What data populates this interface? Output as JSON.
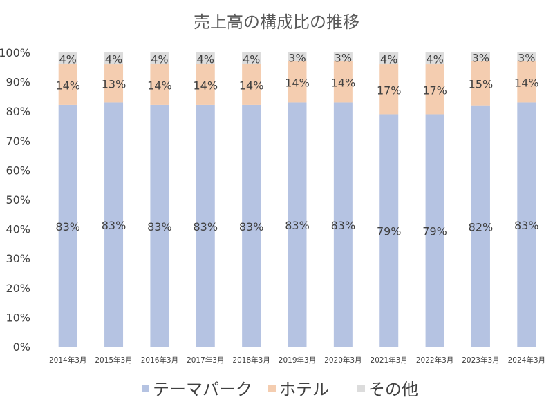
{
  "chart_data": {
    "type": "bar",
    "stacked": "percent",
    "title": "売上高の構成比の推移",
    "categories": [
      "2014年3月",
      "2015年3月",
      "2016年3月",
      "2017年3月",
      "2018年3月",
      "2019年3月",
      "2020年3月",
      "2021年3月",
      "2022年3月",
      "2023年3月",
      "2024年3月"
    ],
    "series": [
      {
        "name": "テーマパーク",
        "color": "#b5c3e2",
        "values": [
          83,
          83,
          83,
          83,
          83,
          83,
          83,
          79,
          79,
          82,
          83
        ]
      },
      {
        "name": "ホテル",
        "color": "#f4cdb0",
        "values": [
          14,
          13,
          14,
          14,
          14,
          14,
          14,
          17,
          17,
          15,
          14
        ]
      },
      {
        "name": "その他",
        "color": "#dcdcdc",
        "values": [
          4,
          4,
          4,
          4,
          4,
          3,
          3,
          4,
          4,
          3,
          3
        ]
      }
    ],
    "yticks": [
      "0%",
      "10%",
      "20%",
      "30%",
      "40%",
      "50%",
      "60%",
      "70%",
      "80%",
      "90%",
      "100%"
    ],
    "ylim": [
      0,
      100
    ],
    "grid": false,
    "legend": "bottom",
    "value_suffix": "%"
  }
}
